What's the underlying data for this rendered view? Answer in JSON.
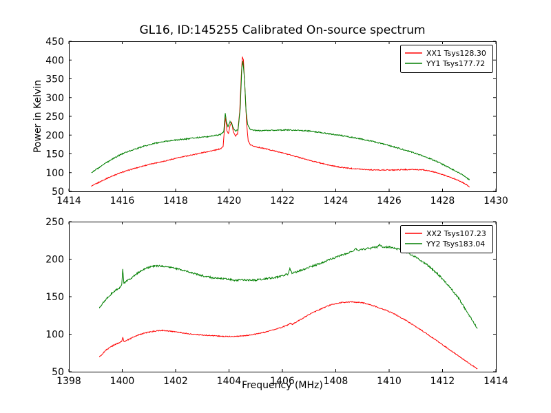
{
  "figure": {
    "title": "GL16, ID:145255 Calibrated On-source spectrum",
    "xlabel": "Frequency (MHz)",
    "ylabel": "Power in Kelvin"
  },
  "chart_data": [
    {
      "type": "line",
      "title": "GL16, ID:145255 Calibrated On-source spectrum",
      "ylabel": "Power in Kelvin",
      "xlabel": "",
      "xlim": [
        1414,
        1430
      ],
      "ylim": [
        50,
        450
      ],
      "xticks": [
        1414,
        1416,
        1418,
        1420,
        1422,
        1424,
        1426,
        1428,
        1430
      ],
      "yticks": [
        50,
        100,
        150,
        200,
        250,
        300,
        350,
        400,
        450
      ],
      "grid": false,
      "legend_position": "upper right",
      "series": [
        {
          "name": "XX1 Tsys128.30",
          "color": "#ff0000",
          "noise": 1.2,
          "points": [
            [
              1414.85,
              64
            ],
            [
              1415.1,
              73
            ],
            [
              1415.4,
              84
            ],
            [
              1415.7,
              93
            ],
            [
              1416.0,
              101
            ],
            [
              1416.4,
              110
            ],
            [
              1416.8,
              118
            ],
            [
              1417.2,
              125
            ],
            [
              1417.6,
              131
            ],
            [
              1418.0,
              138
            ],
            [
              1418.4,
              144
            ],
            [
              1418.8,
              150
            ],
            [
              1419.2,
              156
            ],
            [
              1419.5,
              160
            ],
            [
              1419.7,
              164
            ],
            [
              1419.78,
              170
            ],
            [
              1419.84,
              226
            ],
            [
              1419.88,
              248
            ],
            [
              1419.92,
              212
            ],
            [
              1419.98,
              204
            ],
            [
              1420.04,
              226
            ],
            [
              1420.1,
              233
            ],
            [
              1420.16,
              210
            ],
            [
              1420.24,
              197
            ],
            [
              1420.32,
              203
            ],
            [
              1420.4,
              262
            ],
            [
              1420.46,
              360
            ],
            [
              1420.5,
              408
            ],
            [
              1420.54,
              401
            ],
            [
              1420.6,
              320
            ],
            [
              1420.66,
              230
            ],
            [
              1420.72,
              184
            ],
            [
              1420.8,
              173
            ],
            [
              1421.0,
              169
            ],
            [
              1421.4,
              163
            ],
            [
              1421.8,
              156
            ],
            [
              1422.2,
              149
            ],
            [
              1422.6,
              141
            ],
            [
              1423.0,
              133
            ],
            [
              1423.4,
              126
            ],
            [
              1423.8,
              119
            ],
            [
              1424.2,
              114
            ],
            [
              1424.6,
              111
            ],
            [
              1425.0,
              109
            ],
            [
              1425.4,
              107
            ],
            [
              1425.8,
              107
            ],
            [
              1426.2,
              107
            ],
            [
              1426.6,
              108
            ],
            [
              1427.0,
              108
            ],
            [
              1427.3,
              107
            ],
            [
              1427.6,
              103
            ],
            [
              1427.9,
              97
            ],
            [
              1428.2,
              90
            ],
            [
              1428.5,
              82
            ],
            [
              1428.8,
              72
            ],
            [
              1429.0,
              63
            ]
          ]
        },
        {
          "name": "YY1 Tsys177.72",
          "color": "#007f00",
          "noise": 1.5,
          "points": [
            [
              1414.85,
              100
            ],
            [
              1415.1,
              112
            ],
            [
              1415.4,
              126
            ],
            [
              1415.7,
              139
            ],
            [
              1416.0,
              150
            ],
            [
              1416.4,
              161
            ],
            [
              1416.8,
              170
            ],
            [
              1417.2,
              178
            ],
            [
              1417.6,
              183
            ],
            [
              1418.0,
              187
            ],
            [
              1418.4,
              190
            ],
            [
              1418.8,
              193
            ],
            [
              1419.2,
              196
            ],
            [
              1419.5,
              199
            ],
            [
              1419.7,
              202
            ],
            [
              1419.8,
              208
            ],
            [
              1419.86,
              258
            ],
            [
              1419.9,
              236
            ],
            [
              1419.96,
              222
            ],
            [
              1420.04,
              236
            ],
            [
              1420.1,
              230
            ],
            [
              1420.18,
              216
            ],
            [
              1420.26,
              211
            ],
            [
              1420.34,
              214
            ],
            [
              1420.42,
              270
            ],
            [
              1420.48,
              380
            ],
            [
              1420.52,
              396
            ],
            [
              1420.58,
              350
            ],
            [
              1420.64,
              262
            ],
            [
              1420.7,
              228
            ],
            [
              1420.78,
              216
            ],
            [
              1421.0,
              212
            ],
            [
              1421.4,
              212
            ],
            [
              1421.8,
              213
            ],
            [
              1422.2,
              214
            ],
            [
              1422.6,
              213
            ],
            [
              1423.0,
              211
            ],
            [
              1423.4,
              207
            ],
            [
              1423.8,
              203
            ],
            [
              1424.2,
              199
            ],
            [
              1424.6,
              194
            ],
            [
              1425.0,
              189
            ],
            [
              1425.4,
              183
            ],
            [
              1425.8,
              176
            ],
            [
              1426.2,
              168
            ],
            [
              1426.6,
              160
            ],
            [
              1427.0,
              151
            ],
            [
              1427.4,
              141
            ],
            [
              1427.8,
              129
            ],
            [
              1428.2,
              115
            ],
            [
              1428.5,
              104
            ],
            [
              1428.8,
              92
            ],
            [
              1429.0,
              81
            ]
          ]
        }
      ]
    },
    {
      "type": "line",
      "title": "",
      "ylabel": "",
      "xlabel": "Frequency (MHz)",
      "xlim": [
        1398,
        1414
      ],
      "ylim": [
        50,
        250
      ],
      "xticks": [
        1398,
        1400,
        1402,
        1404,
        1406,
        1408,
        1410,
        1412,
        1414
      ],
      "yticks": [
        50,
        100,
        150,
        200,
        250
      ],
      "grid": false,
      "legend_position": "upper right",
      "series": [
        {
          "name": "XX2 Tsys107.23",
          "color": "#ff0000",
          "noise": 0.6,
          "points": [
            [
              1399.15,
              70
            ],
            [
              1399.4,
              79
            ],
            [
              1399.65,
              85
            ],
            [
              1399.9,
              89
            ],
            [
              1399.98,
              90
            ],
            [
              1400.02,
              96
            ],
            [
              1400.06,
              90
            ],
            [
              1400.3,
              94
            ],
            [
              1400.6,
              99
            ],
            [
              1400.9,
              102
            ],
            [
              1401.2,
              104
            ],
            [
              1401.5,
              105
            ],
            [
              1401.8,
              104
            ],
            [
              1402.2,
              102
            ],
            [
              1402.6,
              100
            ],
            [
              1403.0,
              99
            ],
            [
              1403.4,
              98
            ],
            [
              1403.8,
              97
            ],
            [
              1404.2,
              97
            ],
            [
              1404.6,
              98
            ],
            [
              1405.0,
              100
            ],
            [
              1405.4,
              103
            ],
            [
              1405.8,
              107
            ],
            [
              1406.2,
              112
            ],
            [
              1406.28,
              115
            ],
            [
              1406.36,
              113
            ],
            [
              1406.6,
              118
            ],
            [
              1407.0,
              126
            ],
            [
              1407.4,
              133
            ],
            [
              1407.8,
              139
            ],
            [
              1408.2,
              142
            ],
            [
              1408.6,
              143
            ],
            [
              1409.0,
              142
            ],
            [
              1409.4,
              138
            ],
            [
              1409.8,
              133
            ],
            [
              1410.2,
              127
            ],
            [
              1410.6,
              119
            ],
            [
              1411.0,
              110
            ],
            [
              1411.4,
              101
            ],
            [
              1411.8,
              91
            ],
            [
              1412.2,
              81
            ],
            [
              1412.6,
              71
            ],
            [
              1413.0,
              61
            ],
            [
              1413.3,
              54
            ]
          ]
        },
        {
          "name": "YY2 Tsys183.04",
          "color": "#007f00",
          "noise": 1.2,
          "points": [
            [
              1399.15,
              136
            ],
            [
              1399.4,
              147
            ],
            [
              1399.65,
              156
            ],
            [
              1399.9,
              162
            ],
            [
              1399.98,
              165
            ],
            [
              1400.02,
              187
            ],
            [
              1400.06,
              168
            ],
            [
              1400.3,
              174
            ],
            [
              1400.6,
              182
            ],
            [
              1400.9,
              188
            ],
            [
              1401.2,
              191
            ],
            [
              1401.5,
              191
            ],
            [
              1401.8,
              189
            ],
            [
              1402.2,
              186
            ],
            [
              1402.6,
              182
            ],
            [
              1403.0,
              178
            ],
            [
              1403.4,
              175
            ],
            [
              1403.8,
              174
            ],
            [
              1404.2,
              172
            ],
            [
              1404.6,
              172
            ],
            [
              1405.0,
              172
            ],
            [
              1405.4,
              174
            ],
            [
              1405.8,
              176
            ],
            [
              1406.2,
              180
            ],
            [
              1406.28,
              187
            ],
            [
              1406.36,
              181
            ],
            [
              1406.7,
              185
            ],
            [
              1407.0,
              189
            ],
            [
              1407.4,
              194
            ],
            [
              1407.8,
              200
            ],
            [
              1408.2,
              205
            ],
            [
              1408.6,
              210
            ],
            [
              1408.75,
              214
            ],
            [
              1408.85,
              211
            ],
            [
              1409.0,
              213
            ],
            [
              1409.3,
              215
            ],
            [
              1409.55,
              216
            ],
            [
              1409.65,
              219
            ],
            [
              1409.75,
              216
            ],
            [
              1410.0,
              216
            ],
            [
              1410.3,
              214
            ],
            [
              1410.6,
              210
            ],
            [
              1411.0,
              203
            ],
            [
              1411.4,
              193
            ],
            [
              1411.8,
              181
            ],
            [
              1412.2,
              166
            ],
            [
              1412.6,
              148
            ],
            [
              1413.0,
              125
            ],
            [
              1413.3,
              108
            ]
          ]
        }
      ]
    }
  ]
}
